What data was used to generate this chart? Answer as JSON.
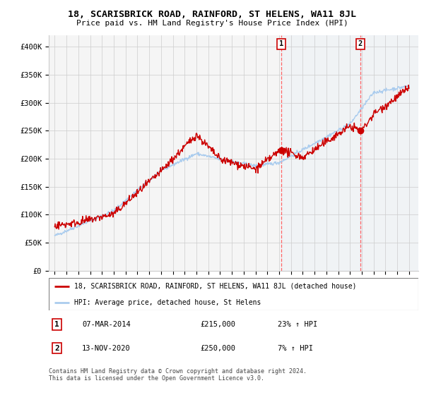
{
  "title": "18, SCARISBRICK ROAD, RAINFORD, ST HELENS, WA11 8JL",
  "subtitle": "Price paid vs. HM Land Registry's House Price Index (HPI)",
  "ylim": [
    0,
    420000
  ],
  "yticks": [
    0,
    50000,
    100000,
    150000,
    200000,
    250000,
    300000,
    350000,
    400000
  ],
  "ytick_labels": [
    "£0",
    "£50K",
    "£100K",
    "£150K",
    "£200K",
    "£250K",
    "£300K",
    "£350K",
    "£400K"
  ],
  "sale1_date_label": "07-MAR-2014",
  "sale1_price": 215000,
  "sale1_price_label": "£215,000",
  "sale1_hpi_label": "23% ↑ HPI",
  "sale1_x": 2014.18,
  "sale2_date_label": "13-NOV-2020",
  "sale2_price": 250000,
  "sale2_price_label": "£250,000",
  "sale2_hpi_label": "7% ↑ HPI",
  "sale2_x": 2020.87,
  "legend_line1": "18, SCARISBRICK ROAD, RAINFORD, ST HELENS, WA11 8JL (detached house)",
  "legend_line2": "HPI: Average price, detached house, St Helens",
  "footer": "Contains HM Land Registry data © Crown copyright and database right 2024.\nThis data is licensed under the Open Government Licence v3.0.",
  "price_line_color": "#cc0000",
  "hpi_line_color": "#aaccee",
  "vline_color": "#ff6666",
  "background_color": "#ffffff",
  "plot_bg_color": "#f5f5f5",
  "grid_color": "#cccccc"
}
